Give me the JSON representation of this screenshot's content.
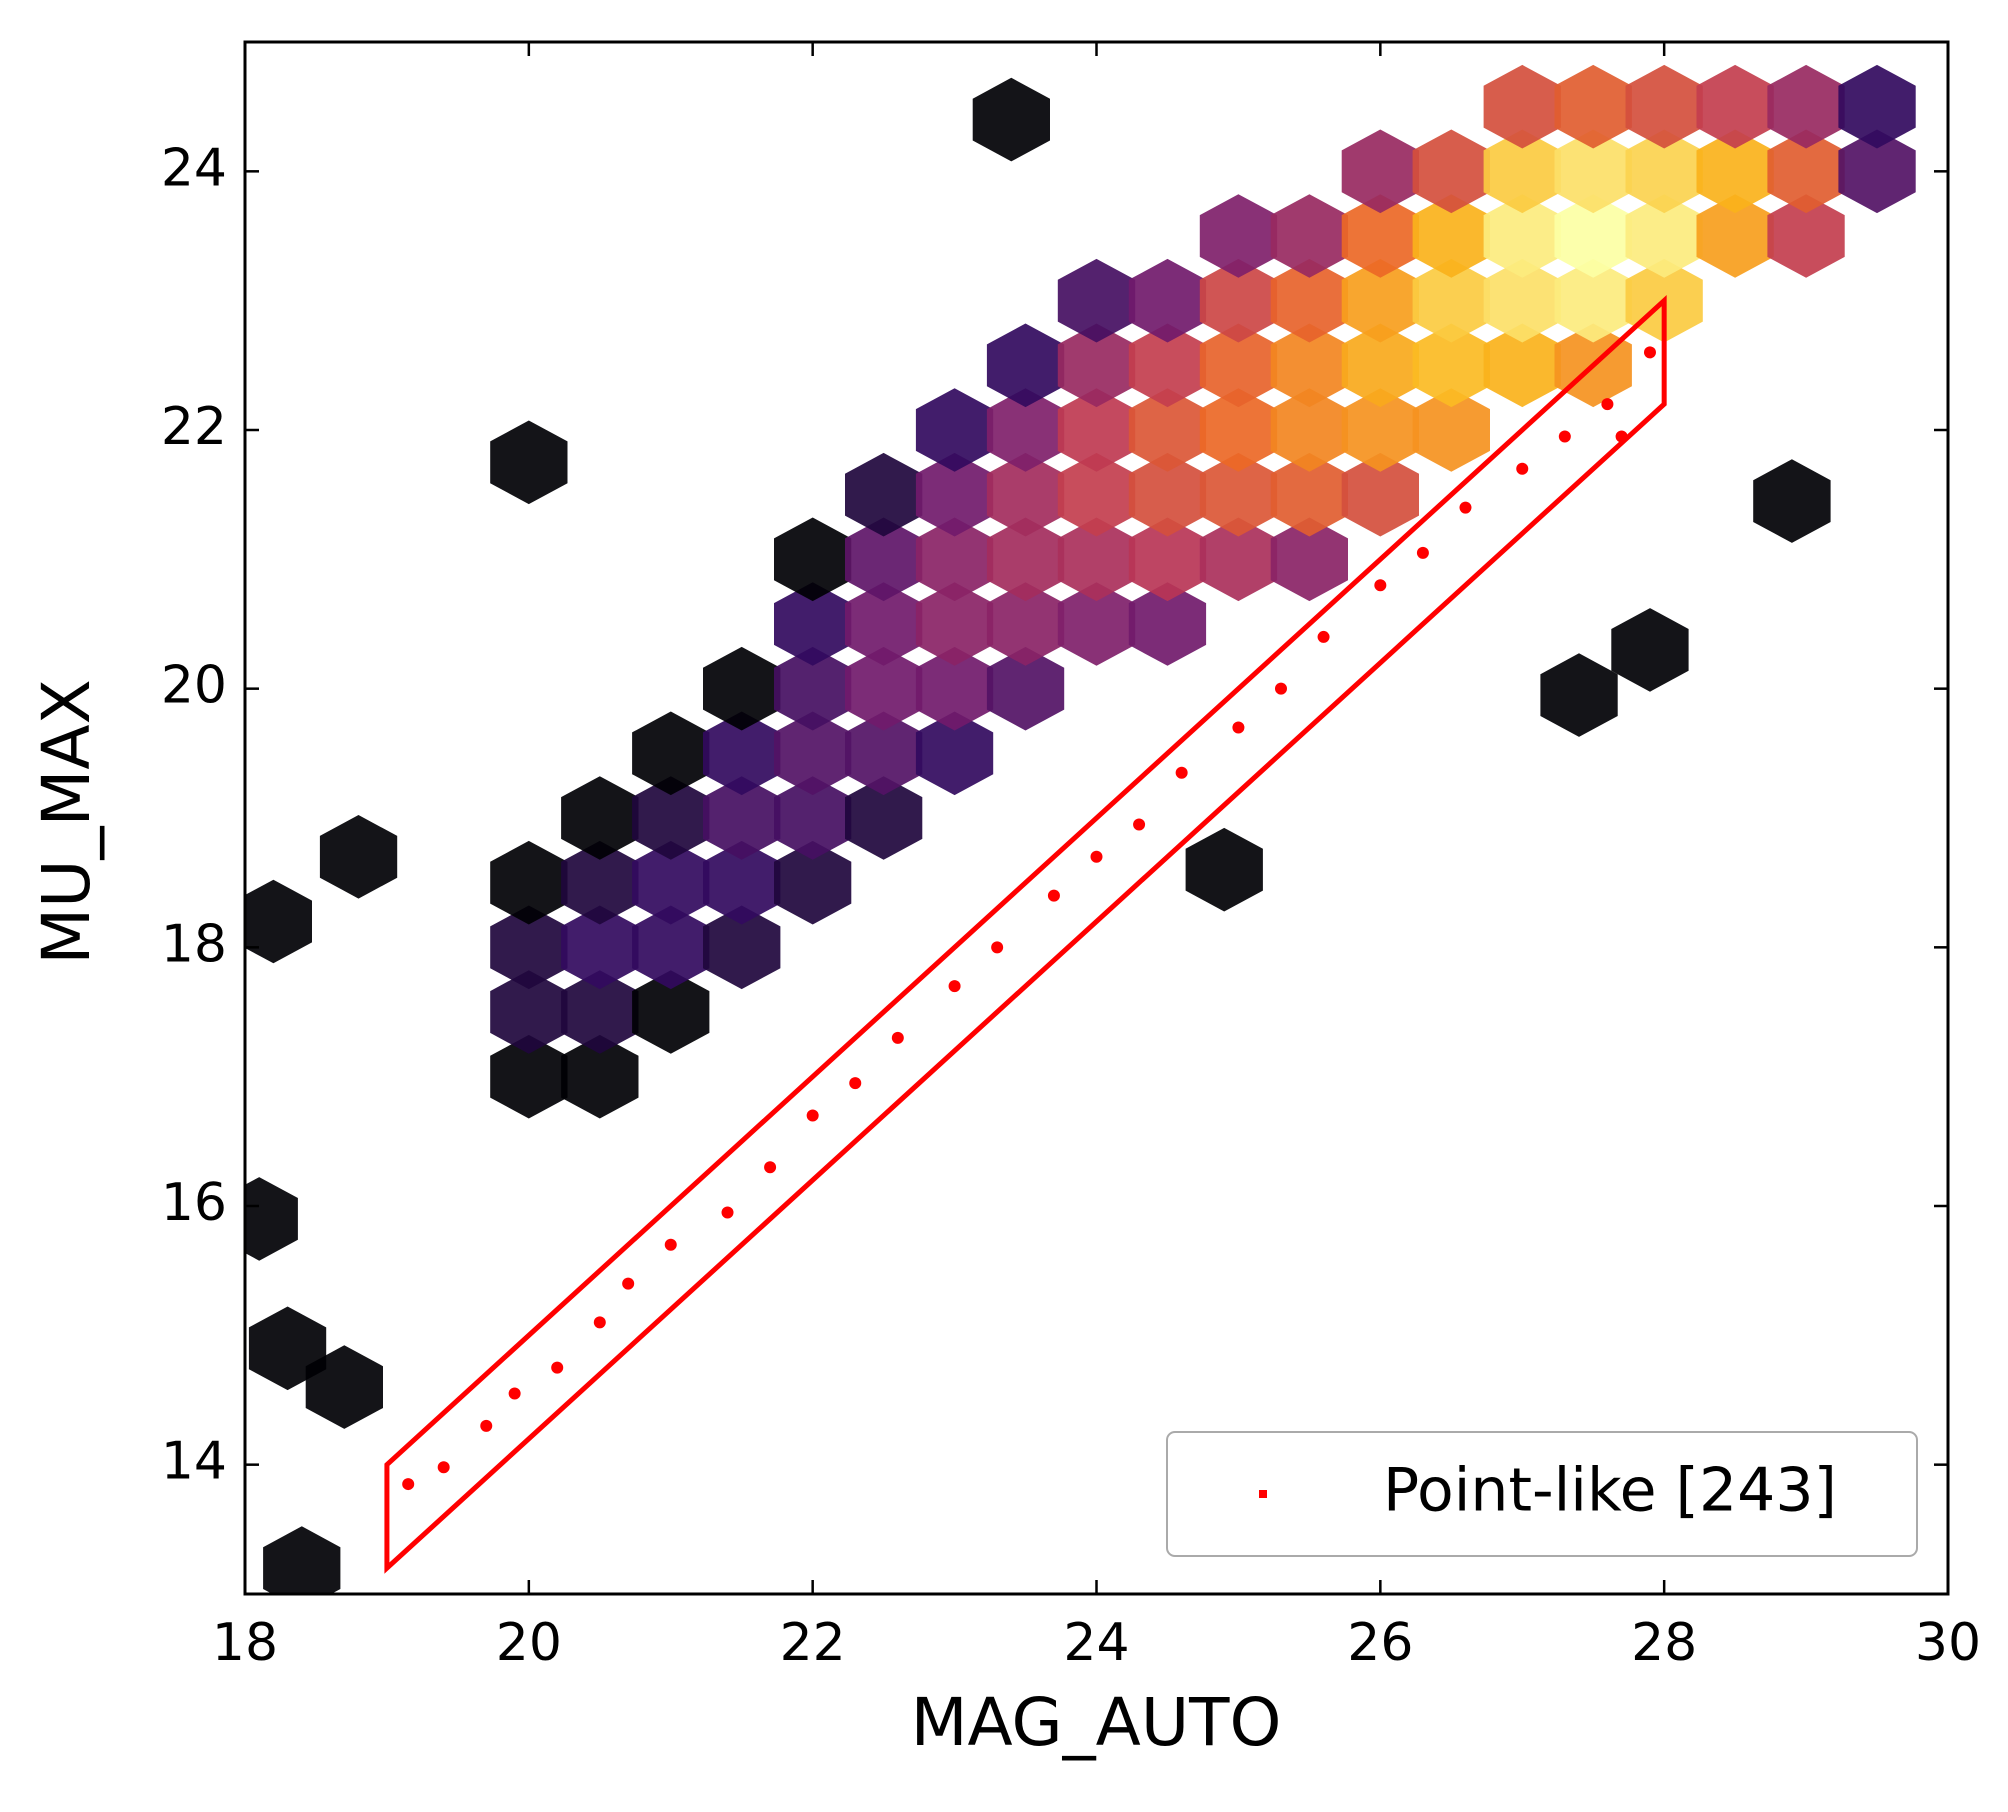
{
  "chart_data": {
    "type": "hexbin",
    "x_label": "MAG_AUTO",
    "y_label": "MU_MAX",
    "xlim": [
      18,
      30
    ],
    "ylim": [
      13,
      25
    ],
    "xticks": [
      18,
      20,
      22,
      24,
      26,
      28,
      30
    ],
    "yticks": [
      14,
      16,
      18,
      20,
      22,
      24
    ],
    "grid": false,
    "legend": "lower right",
    "hexbin": {
      "colormap": "inferno",
      "x": [
        20,
        20,
        20,
        20,
        20.5,
        20.5,
        20.5,
        20.5,
        20.5,
        21,
        21,
        21,
        21,
        21,
        21.5,
        21.5,
        21.5,
        21.5,
        21.5,
        22,
        22,
        22,
        22,
        22,
        22,
        22.5,
        22.5,
        22.5,
        22.5,
        22.5,
        22.5,
        23,
        23,
        23,
        23,
        23,
        23,
        23.5,
        23.5,
        23.5,
        23.5,
        23.5,
        23.5,
        24,
        24,
        24,
        24,
        24,
        24,
        24.5,
        24.5,
        24.5,
        24.5,
        24.5,
        24.5,
        25,
        25,
        25,
        25,
        25,
        25,
        25.5,
        25.5,
        25.5,
        25.5,
        25.5,
        25.5,
        26,
        26,
        26,
        26,
        26,
        26,
        26.5,
        26.5,
        26.5,
        26.5,
        26.5,
        27,
        27,
        27,
        27,
        27,
        27.5,
        27.5,
        27.5,
        27.5,
        27.5,
        28,
        28,
        28,
        28,
        28.5,
        28.5,
        28.5,
        29,
        29,
        29,
        29.5,
        29.5,
        20,
        23.4,
        28.9,
        27.9,
        27.4,
        24.9,
        18.2,
        18.8,
        18.1,
        18.3,
        18.7,
        18.4
      ],
      "y": [
        17,
        17.5,
        18,
        18.5,
        17,
        17.5,
        18,
        18.5,
        19,
        17.5,
        18,
        18.5,
        19,
        19.5,
        18,
        18.5,
        19,
        19.5,
        20,
        18.5,
        19,
        19.5,
        20,
        20.5,
        21,
        19,
        19.5,
        20,
        20.5,
        21,
        21.5,
        19.5,
        20,
        20.5,
        21,
        21.5,
        22,
        20,
        20.5,
        21,
        21.5,
        22,
        22.5,
        20.5,
        21,
        21.5,
        22,
        22.5,
        23,
        20.5,
        21,
        21.5,
        22,
        22.5,
        23,
        21,
        21.5,
        22,
        22.5,
        23,
        23.5,
        21,
        21.5,
        22,
        22.5,
        23,
        23.5,
        21.5,
        22,
        22.5,
        23,
        23.5,
        24,
        22,
        22.5,
        23,
        23.5,
        24,
        22.5,
        23,
        23.5,
        24,
        24.5,
        22.5,
        23,
        23.5,
        24,
        24.5,
        23,
        23.5,
        24,
        24.5,
        23.5,
        24,
        24.5,
        23.5,
        24,
        24.5,
        24,
        24.5,
        21.75,
        24.4,
        21.45,
        20.3,
        19.95,
        18.6,
        18.2,
        18.7,
        15.9,
        14.9,
        14.6,
        13.2
      ],
      "counts": [
        1,
        2,
        2,
        1,
        1,
        2,
        3,
        2,
        1,
        1,
        3,
        3,
        2,
        1,
        2,
        3,
        4,
        3,
        1,
        2,
        4,
        5,
        4,
        3,
        1,
        2,
        5,
        8,
        8,
        6,
        2,
        3,
        8,
        12,
        12,
        8,
        3,
        5,
        12,
        18,
        18,
        10,
        3,
        10,
        20,
        30,
        28,
        15,
        4,
        8,
        25,
        40,
        45,
        30,
        8,
        20,
        45,
        60,
        55,
        35,
        10,
        12,
        50,
        80,
        80,
        55,
        15,
        40,
        90,
        110,
        100,
        60,
        15,
        90,
        130,
        150,
        120,
        40,
        120,
        180,
        200,
        150,
        40,
        90,
        200,
        240,
        180,
        50,
        150,
        200,
        160,
        40,
        100,
        120,
        30,
        30,
        50,
        15,
        5,
        3,
        1,
        1,
        1,
        1,
        1,
        1,
        1,
        1,
        1,
        1,
        1,
        1
      ]
    },
    "selection": {
      "color": "#ff0000",
      "x": [
        19,
        19,
        28,
        28
      ],
      "y": [
        14,
        13.2,
        22.2,
        23
      ]
    },
    "series": [
      {
        "name": "Point-like [243]",
        "color": "#ff0000",
        "x": [
          19.15,
          19.4,
          19.7,
          19.9,
          20.2,
          20.5,
          20.7,
          21,
          21.4,
          21.7,
          22,
          22.3,
          22.6,
          23,
          23.3,
          23.7,
          24,
          24.3,
          24.6,
          25,
          25.3,
          25.6,
          26,
          26.3,
          26.6,
          27,
          27.3,
          27.6,
          27.9,
          27.7
        ],
        "values": [
          13.85,
          13.98,
          14.3,
          14.55,
          14.75,
          15.1,
          15.4,
          15.7,
          15.95,
          16.3,
          16.7,
          16.95,
          17.3,
          17.7,
          18,
          18.4,
          18.7,
          18.95,
          19.35,
          19.7,
          20,
          20.4,
          20.8,
          21.05,
          21.4,
          21.7,
          21.95,
          22.2,
          22.6,
          21.95
        ]
      }
    ]
  }
}
